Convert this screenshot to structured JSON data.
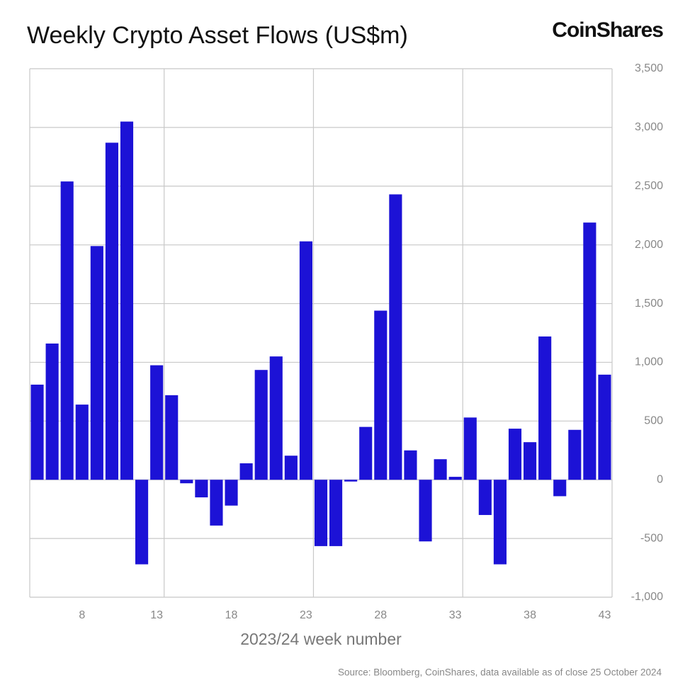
{
  "chart_data": {
    "type": "bar",
    "title": "Weekly Crypto Asset Flows (US$m)",
    "brand": "CoinShares",
    "x_label": "2023/24 week number",
    "source": "Source: Bloomberg, CoinShares, data available as of close 25 October 2024",
    "categories": [
      null,
      null,
      null,
      "8",
      null,
      null,
      null,
      null,
      "13",
      null,
      null,
      null,
      null,
      "18",
      null,
      null,
      null,
      null,
      "23",
      null,
      null,
      null,
      null,
      "28",
      null,
      null,
      null,
      null,
      "33",
      null,
      null,
      null,
      null,
      "38",
      null,
      null,
      null,
      null,
      "43"
    ],
    "values": [
      810,
      1160,
      2540,
      640,
      1990,
      2870,
      3050,
      -720,
      975,
      720,
      -30,
      -150,
      -390,
      -220,
      140,
      935,
      1050,
      205,
      2030,
      -565,
      -565,
      -15,
      450,
      1440,
      2430,
      250,
      -525,
      175,
      25,
      530,
      -300,
      -720,
      435,
      320,
      1220,
      -140,
      425,
      2190,
      895
    ],
    "color": "#1c12d6",
    "ylim": [
      -1000,
      3500
    ],
    "yticks": [
      {
        "value": -1000,
        "label": "-1,000"
      },
      {
        "value": -500,
        "label": "-500"
      },
      0,
      500,
      {
        "value": 1000,
        "label": "1,000"
      },
      {
        "value": 1500,
        "label": "1,500"
      },
      {
        "value": 2000,
        "label": "2,000"
      },
      {
        "value": 2500,
        "label": "2,500"
      },
      {
        "value": 3000,
        "label": "3,000"
      },
      {
        "value": 3500,
        "label": "3,500"
      }
    ],
    "y_axis_side": "right",
    "grid": true
  }
}
